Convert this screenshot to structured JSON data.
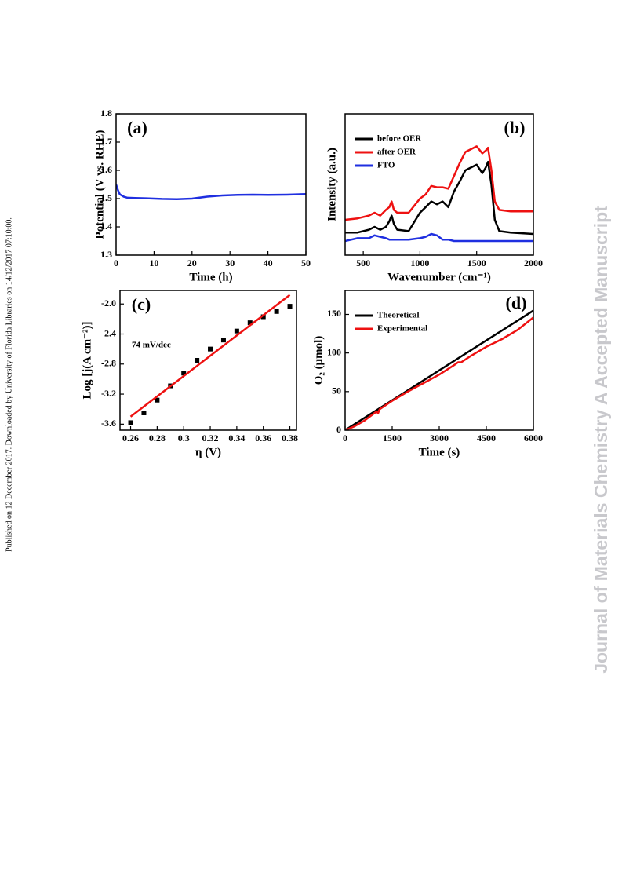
{
  "side_note": "Published on 12 December 2017. Downloaded by University of Florida Libraries on 14/12/2017 07:10:00.",
  "watermark": "Journal of Materials Chemistry A Accepted Manuscript",
  "chart_data": [
    {
      "type": "line",
      "panel_label": "(a)",
      "xlabel": "Time (h)",
      "ylabel": "Potential (V vs. RHE)",
      "xlim": [
        0,
        50
      ],
      "xticks": [
        0,
        10,
        20,
        30,
        40,
        50
      ],
      "ylim": [
        1.3,
        1.8
      ],
      "yticks": [
        1.3,
        1.4,
        1.5,
        1.6,
        1.7,
        1.8
      ],
      "series": [
        {
          "color": "#1f2fe0",
          "x": [
            0,
            0.5,
            1,
            2,
            3,
            5,
            8,
            12,
            16,
            20,
            24,
            28,
            32,
            36,
            40,
            45,
            50
          ],
          "values": [
            1.55,
            1.53,
            1.515,
            1.507,
            1.503,
            1.502,
            1.501,
            1.499,
            1.498,
            1.5,
            1.507,
            1.511,
            1.513,
            1.514,
            1.513,
            1.514,
            1.516
          ]
        }
      ]
    },
    {
      "type": "line",
      "panel_label": "(b)",
      "xlabel": "Wavenumber (cm⁻¹)",
      "ylabel": "Intensity (a.u.)",
      "xlim": [
        340,
        2000
      ],
      "xticks": [
        500,
        1000,
        1500,
        2000
      ],
      "ylim": [
        0,
        100
      ],
      "legend": "upper left",
      "series": [
        {
          "name": "before OER",
          "color": "#000000",
          "x": [
            340,
            450,
            550,
            600,
            650,
            700,
            730,
            750,
            770,
            800,
            900,
            1000,
            1050,
            1100,
            1150,
            1200,
            1250,
            1300,
            1350,
            1400,
            1450,
            1500,
            1550,
            1580,
            1600,
            1630,
            1660,
            1700,
            1800,
            2000
          ],
          "values": [
            16,
            16,
            18,
            20,
            18,
            20,
            24,
            28,
            22,
            18,
            17,
            30,
            34,
            38,
            36,
            38,
            34,
            45,
            52,
            60,
            62,
            64,
            58,
            62,
            66,
            50,
            25,
            17,
            16,
            15
          ]
        },
        {
          "name": "after OER",
          "color": "#ee1111",
          "x": [
            340,
            450,
            550,
            600,
            650,
            700,
            730,
            750,
            770,
            800,
            900,
            1000,
            1050,
            1100,
            1150,
            1200,
            1250,
            1300,
            1350,
            1400,
            1450,
            1500,
            1550,
            1580,
            1600,
            1630,
            1660,
            1700,
            1800,
            2000
          ],
          "values": [
            25,
            26,
            28,
            30,
            28,
            32,
            34,
            38,
            32,
            30,
            30,
            40,
            43,
            49,
            48,
            48,
            47,
            56,
            65,
            73,
            75,
            77,
            72,
            74,
            76,
            60,
            38,
            32,
            31,
            31
          ]
        },
        {
          "name": "FTO",
          "color": "#1f2fe0",
          "x": [
            340,
            450,
            550,
            600,
            650,
            700,
            730,
            750,
            770,
            800,
            900,
            1000,
            1050,
            1100,
            1150,
            1200,
            1250,
            1300,
            1350,
            1400,
            1450,
            1500,
            1550,
            1580,
            1600,
            1630,
            1660,
            1700,
            1800,
            2000
          ],
          "values": [
            10,
            12,
            12,
            14,
            13,
            12,
            11,
            11,
            11,
            11,
            11,
            12,
            13,
            15,
            14,
            11,
            11,
            10,
            10,
            10,
            10,
            10,
            10,
            10,
            10,
            10,
            10,
            10,
            10,
            10
          ]
        }
      ]
    },
    {
      "type": "scatter",
      "panel_label": "(c)",
      "xlabel": "η (V)",
      "ylabel": "Log [j(A cm⁻²)]",
      "annotation": "74 mV/dec",
      "xlim": [
        0.252,
        0.385
      ],
      "xticks": [
        0.26,
        0.28,
        0.3,
        0.32,
        0.34,
        0.36,
        0.38
      ],
      "ylim": [
        -3.68,
        -1.82
      ],
      "yticks": [
        {
          "value": -2,
          "label": "-2.0"
        },
        -2.4,
        -2.8,
        -3.2,
        -3.6
      ],
      "series": [
        {
          "type": "scatter",
          "color": "#000000",
          "x": [
            0.26,
            0.27,
            0.28,
            0.29,
            0.3,
            0.31,
            0.32,
            0.33,
            0.34,
            0.35,
            0.36,
            0.37,
            0.38
          ],
          "values": [
            -3.58,
            -3.45,
            -3.28,
            -3.09,
            -2.92,
            -2.75,
            -2.6,
            -2.48,
            -2.36,
            -2.25,
            -2.17,
            -2.1,
            -2.03
          ]
        },
        {
          "type": "line",
          "color": "#ee1111",
          "x": [
            0.26,
            0.38
          ],
          "values": [
            -3.5,
            -1.88
          ]
        }
      ]
    },
    {
      "type": "line",
      "panel_label": "(d)",
      "xlabel": "Time (s)",
      "ylabel": "O₂ (μmol)",
      "xlim": [
        0,
        6000
      ],
      "xticks": [
        0,
        1500,
        3000,
        4500,
        6000
      ],
      "ylim": [
        0,
        181
      ],
      "yticks": [
        0,
        50,
        100,
        150
      ],
      "legend": "upper left",
      "series": [
        {
          "name": "Theoretical",
          "color": "#000000",
          "x": [
            0,
            6000
          ],
          "values": [
            0,
            155
          ]
        },
        {
          "name": "Experimental",
          "color": "#ee1111",
          "x": [
            0,
            300,
            600,
            1000,
            1050,
            1100,
            1500,
            2000,
            2500,
            3000,
            3500,
            3600,
            3700,
            4000,
            4500,
            5000,
            5500,
            6000
          ],
          "values": [
            0,
            5,
            12,
            24,
            22,
            27,
            38,
            50,
            61,
            72,
            85,
            88,
            88,
            96,
            108,
            118,
            130,
            146
          ]
        }
      ]
    }
  ]
}
